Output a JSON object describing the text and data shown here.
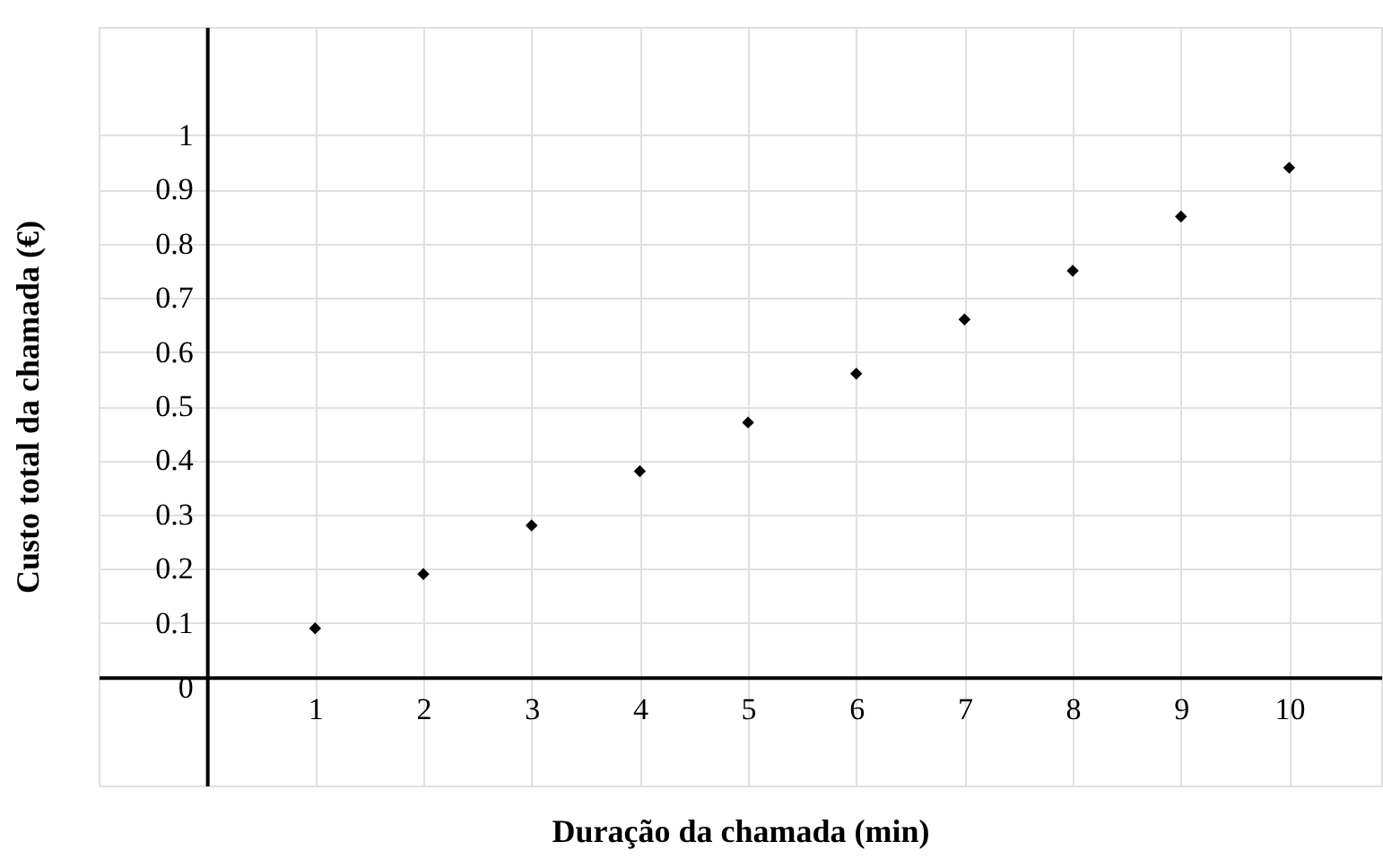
{
  "chart_data": {
    "type": "scatter",
    "xlabel": "Duração da chamada (min)",
    "ylabel": "Custo total da chamada (€)",
    "x": [
      1,
      2,
      3,
      4,
      5,
      6,
      7,
      8,
      9,
      10
    ],
    "series": [
      {
        "color": "#000000",
        "values": [
          0.09,
          0.19,
          0.28,
          0.38,
          0.47,
          0.56,
          0.66,
          0.75,
          0.85,
          0.94
        ]
      }
    ],
    "xlim": [
      -1,
      10.85
    ],
    "ylim": [
      -0.2,
      1.2
    ],
    "xticks": [
      1,
      2,
      3,
      4,
      5,
      6,
      7,
      8,
      9,
      10
    ],
    "yticks": [
      0,
      0.1,
      0.2,
      0.3,
      0.4,
      0.5,
      0.6,
      0.7,
      0.8,
      0.9,
      1
    ],
    "grid": true,
    "marker": "diamond"
  }
}
